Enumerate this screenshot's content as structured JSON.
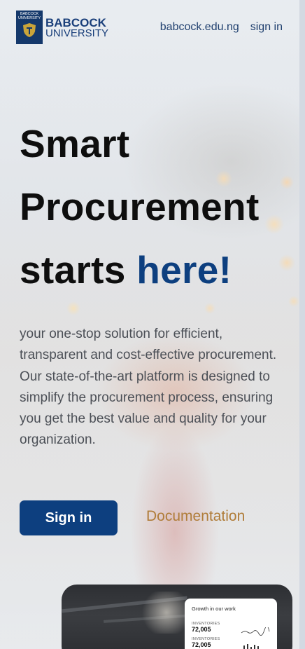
{
  "header": {
    "logo_line1": "BABCOCK",
    "logo_line2": "UNIVERSITY",
    "crest_text": "BABCOCK UNIVERSITY",
    "nav": [
      "babcock.edu.ng",
      "sign in"
    ]
  },
  "hero": {
    "title_line1": "Smart",
    "title_line2": "Procurement",
    "title_line3_plain": "starts",
    "title_line3_accent": "here!",
    "description": "your one-stop solution for efficient, transparent and cost-effective procurement. Our state-of-the-art platform is designed to simplify the procurement process, ensuring you get the best value and quality for your organization."
  },
  "actions": {
    "primary": "Sign in",
    "secondary": "Documentation"
  },
  "preview": {
    "card_title": "Growth in our work",
    "stats": [
      {
        "label": "INVENTORIES",
        "value": "72,005"
      },
      {
        "label": "INVENTORIES",
        "value": "72,005"
      }
    ]
  },
  "colors": {
    "primary": "#0d3f7f",
    "link": "#b07d3a",
    "text": "#4b4f56"
  }
}
